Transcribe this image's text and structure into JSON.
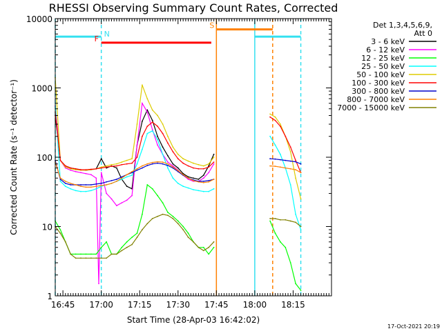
{
  "chart_data": {
    "type": "line",
    "title": "RHESSI Observing Summary Count Rates, Corrected",
    "xlabel": "Start Time (28-Apr-03 16:42:02)",
    "ylabel": "Corrected Count Rate (s⁻¹ detector⁻¹)",
    "y_scale": "log",
    "ylim": [
      1,
      10000
    ],
    "xlim_minutes_after_1642": [
      0,
      108
    ],
    "x_ticks": [
      {
        "label": "16:45",
        "minute": 3
      },
      {
        "label": "17:00",
        "minute": 18
      },
      {
        "label": "17:15",
        "minute": 33
      },
      {
        "label": "17:30",
        "minute": 48
      },
      {
        "label": "17:45",
        "minute": 63
      },
      {
        "label": "18:00",
        "minute": 78
      },
      {
        "label": "18:15",
        "minute": 93
      }
    ],
    "y_ticks": [
      {
        "label": "1",
        "value": 1
      },
      {
        "label": "10",
        "value": 10
      },
      {
        "label": "100",
        "value": 100
      },
      {
        "label": "1000",
        "value": 1000
      },
      {
        "label": "10000",
        "value": 10000
      }
    ],
    "legend": {
      "header": [
        "Det 1,3,4,5,6,9,",
        "Att 0"
      ],
      "placement": "right"
    },
    "series": [
      {
        "name": "3 - 6 keV",
        "color": "#000000",
        "x": [
          0,
          2,
          4,
          6,
          8,
          10,
          12,
          14,
          16,
          18,
          20,
          22,
          24,
          26,
          28,
          30,
          32,
          34,
          36,
          38,
          40,
          42,
          44,
          46,
          48,
          50,
          52,
          54,
          56,
          58,
          60,
          62
        ],
        "y": [
          400,
          90,
          75,
          70,
          68,
          66,
          65,
          66,
          68,
          95,
          70,
          75,
          70,
          48,
          38,
          35,
          150,
          330,
          480,
          340,
          200,
          140,
          105,
          80,
          70,
          58,
          52,
          50,
          48,
          55,
          75,
          110
        ]
      },
      {
        "name": "6 - 12 keV",
        "color": "#ff00ff",
        "x": [
          0,
          2,
          4,
          6,
          8,
          10,
          12,
          14,
          16,
          17,
          18,
          20,
          22,
          24,
          26,
          28,
          30,
          32,
          34,
          36,
          38,
          40,
          42,
          44,
          46,
          48,
          50,
          52,
          54,
          56,
          58,
          60,
          62
        ],
        "y": [
          550,
          90,
          70,
          65,
          62,
          60,
          58,
          56,
          50,
          1.5,
          60,
          30,
          25,
          20,
          22,
          24,
          28,
          150,
          600,
          450,
          250,
          150,
          110,
          85,
          75,
          65,
          55,
          48,
          45,
          45,
          50,
          60,
          80
        ]
      },
      {
        "name": "12 - 25 keV",
        "color": "#00ff00",
        "x": [
          0,
          2,
          4,
          6,
          8,
          10,
          12,
          14,
          16,
          18,
          20,
          22,
          24,
          26,
          28,
          30,
          32,
          34,
          36,
          38,
          40,
          42,
          44,
          46,
          48,
          50,
          52,
          54,
          56,
          58,
          60,
          62,
          84,
          86,
          88,
          90,
          92,
          94,
          96
        ],
        "y": [
          12,
          9,
          6,
          4,
          4,
          4,
          4,
          4,
          4,
          5,
          6,
          4,
          4,
          5,
          6,
          7,
          8,
          15,
          40,
          35,
          28,
          22,
          16,
          14,
          12,
          10,
          8,
          6,
          5,
          5,
          4,
          5,
          12,
          8,
          6,
          5,
          3,
          1.5,
          1.2
        ]
      },
      {
        "name": "25 - 50 keV",
        "color": "#00ffff",
        "x": [
          0,
          2,
          4,
          6,
          8,
          10,
          12,
          14,
          16,
          18,
          20,
          22,
          24,
          26,
          28,
          30,
          32,
          34,
          36,
          38,
          40,
          42,
          44,
          46,
          48,
          50,
          52,
          54,
          56,
          58,
          60,
          62,
          84,
          86,
          88,
          90,
          92,
          94,
          96
        ],
        "y": [
          600,
          45,
          38,
          35,
          33,
          32,
          32,
          33,
          35,
          38,
          40,
          42,
          45,
          48,
          52,
          55,
          80,
          130,
          220,
          240,
          180,
          110,
          70,
          50,
          42,
          38,
          36,
          34,
          33,
          32,
          32,
          35,
          200,
          150,
          110,
          70,
          40,
          15,
          9
        ]
      },
      {
        "name": "50 - 100 keV",
        "color": "#ddcc00",
        "x": [
          0,
          2,
          4,
          6,
          8,
          10,
          12,
          14,
          16,
          18,
          20,
          22,
          24,
          26,
          28,
          30,
          32,
          34,
          36,
          38,
          40,
          42,
          44,
          46,
          48,
          50,
          52,
          54,
          56,
          58,
          60,
          62,
          84,
          86,
          88,
          90,
          92,
          94,
          96
        ],
        "y": [
          1400,
          90,
          72,
          68,
          66,
          65,
          65,
          66,
          68,
          72,
          75,
          78,
          80,
          85,
          90,
          95,
          300,
          1100,
          700,
          480,
          400,
          300,
          200,
          140,
          110,
          95,
          88,
          82,
          78,
          75,
          80,
          100,
          420,
          380,
          300,
          200,
          120,
          50,
          25
        ]
      },
      {
        "name": "100 - 300 keV",
        "color": "#ff0000",
        "x": [
          0,
          2,
          4,
          6,
          8,
          10,
          12,
          14,
          16,
          18,
          20,
          22,
          24,
          26,
          28,
          30,
          32,
          34,
          36,
          38,
          40,
          42,
          44,
          46,
          48,
          50,
          52,
          54,
          56,
          58,
          60,
          62,
          84,
          86,
          88,
          90,
          92,
          94,
          96
        ],
        "y": [
          450,
          90,
          75,
          70,
          68,
          66,
          66,
          67,
          68,
          70,
          72,
          74,
          75,
          78,
          80,
          82,
          100,
          200,
          280,
          320,
          280,
          220,
          160,
          120,
          95,
          82,
          75,
          70,
          68,
          68,
          72,
          85,
          380,
          340,
          280,
          200,
          140,
          90,
          60
        ]
      },
      {
        "name": "300 - 800 keV",
        "color": "#0000cc",
        "x": [
          0,
          2,
          4,
          6,
          8,
          10,
          12,
          14,
          16,
          18,
          20,
          22,
          24,
          26,
          28,
          30,
          32,
          34,
          36,
          38,
          40,
          42,
          44,
          46,
          48,
          50,
          52,
          54,
          56,
          58,
          60,
          62,
          84,
          86,
          88,
          90,
          92,
          94,
          96
        ],
        "y": [
          90,
          48,
          42,
          40,
          40,
          40,
          40,
          40,
          41,
          42,
          44,
          46,
          48,
          52,
          56,
          60,
          65,
          70,
          76,
          80,
          82,
          80,
          76,
          70,
          62,
          55,
          50,
          47,
          45,
          45,
          46,
          48,
          95,
          94,
          92,
          90,
          88,
          86,
          80
        ]
      },
      {
        "name": "800 - 7000 keV",
        "color": "#ff8000",
        "x": [
          0,
          2,
          4,
          6,
          8,
          10,
          12,
          14,
          16,
          18,
          20,
          22,
          24,
          26,
          28,
          30,
          32,
          34,
          36,
          38,
          40,
          42,
          44,
          46,
          48,
          50,
          52,
          54,
          56,
          58,
          60,
          62,
          84,
          86,
          88,
          90,
          92,
          94,
          96
        ],
        "y": [
          85,
          50,
          45,
          42,
          40,
          38,
          37,
          37,
          38,
          39,
          40,
          42,
          45,
          50,
          56,
          62,
          68,
          75,
          80,
          84,
          86,
          85,
          80,
          72,
          64,
          56,
          50,
          46,
          44,
          43,
          44,
          48,
          75,
          74,
          72,
          70,
          68,
          66,
          60
        ]
      },
      {
        "name": "7000 - 15000 keV",
        "color": "#808000",
        "x": [
          0,
          2,
          4,
          6,
          8,
          10,
          12,
          14,
          16,
          18,
          20,
          22,
          24,
          26,
          28,
          30,
          32,
          34,
          36,
          38,
          40,
          42,
          44,
          46,
          48,
          50,
          52,
          54,
          56,
          58,
          60,
          62,
          84,
          86,
          88,
          90,
          92,
          94,
          96
        ],
        "y": [
          10,
          8,
          6,
          4,
          3.5,
          3.5,
          3.5,
          3.5,
          3.5,
          3.5,
          3.5,
          4,
          4,
          4.5,
          5,
          5.5,
          7,
          9,
          11,
          13,
          14,
          15,
          14.5,
          13,
          11,
          9,
          7,
          6,
          5,
          4.5,
          5,
          6,
          13,
          13,
          12.5,
          12.5,
          12,
          11.5,
          10
        ]
      }
    ],
    "state_bars": [
      {
        "label": "N",
        "color": "#33e0f0",
        "value": 5500,
        "start": 0,
        "end": 18
      },
      {
        "label": "F",
        "color": "#ff0000",
        "value": 4500,
        "start": 18,
        "end": 61
      },
      {
        "label": "S",
        "color": "#ff8000",
        "value": 7000,
        "start": 63,
        "end": 85
      },
      {
        "label": "",
        "color": "#33e0f0",
        "value": 5500,
        "start": 78,
        "end": 96
      }
    ],
    "vertical_lines": [
      {
        "minute": 0,
        "color": "#33e0f0",
        "style": "dashed"
      },
      {
        "minute": 18,
        "color": "#33e0f0",
        "style": "dashed"
      },
      {
        "minute": 63,
        "color": "#ff8000",
        "style": "solid"
      },
      {
        "minute": 78,
        "color": "#33e0f0",
        "style": "solid"
      },
      {
        "minute": 85,
        "color": "#ff8000",
        "style": "dashed"
      },
      {
        "minute": 96,
        "color": "#33e0f0",
        "style": "dashed"
      }
    ],
    "timestamp": "17-Oct-2021 20:19"
  }
}
